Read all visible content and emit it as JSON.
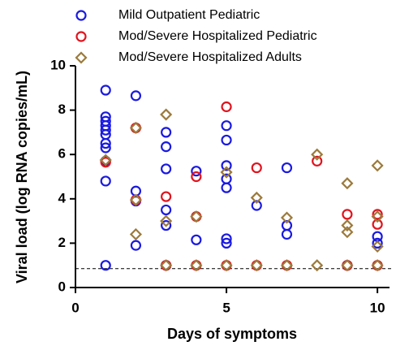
{
  "chart_data": {
    "type": "scatter",
    "x_label": "Days of symptoms",
    "y_label": "Viral load (log RNA copies/mL)",
    "xlim": [
      0,
      10.4
    ],
    "xticks": [
      0,
      5,
      10
    ],
    "ylim": [
      0,
      10
    ],
    "yticks": [
      0,
      2,
      4,
      6,
      8,
      10
    ],
    "hline": 0.85,
    "series": [
      {
        "name": "Mild Outpatient Pediatric",
        "color": "#1a1ae0",
        "marker": "circle",
        "x": [
          1,
          1,
          1,
          1,
          1,
          1,
          1,
          1,
          1,
          1,
          1,
          2,
          2,
          2,
          2,
          3,
          3,
          3,
          3,
          3,
          3,
          4,
          4,
          5,
          5,
          5,
          5,
          5,
          5,
          5,
          6,
          7,
          7,
          7,
          9,
          10,
          10
        ],
        "values": [
          8.9,
          7.7,
          7.5,
          7.3,
          7.1,
          6.9,
          6.5,
          6.3,
          5.7,
          4.8,
          1.0,
          8.65,
          4.35,
          3.9,
          1.9,
          7.0,
          6.35,
          5.35,
          3.5,
          2.8,
          1.0,
          5.25,
          2.15,
          7.3,
          6.65,
          5.5,
          4.9,
          4.5,
          2.2,
          2.0,
          3.7,
          5.4,
          2.8,
          2.4,
          1.0,
          2.3,
          2.0
        ]
      },
      {
        "name": "Mod/Severe Hospitalized Pediatric",
        "color": "#e0141e",
        "marker": "circle",
        "x": [
          1,
          2,
          2,
          3,
          3,
          4,
          4,
          4,
          5,
          5,
          6,
          6,
          7,
          8,
          9,
          9,
          10,
          10,
          10
        ],
        "values": [
          5.65,
          7.2,
          3.95,
          4.1,
          1.0,
          5.0,
          3.2,
          1.0,
          8.15,
          1.0,
          5.4,
          1.0,
          1.0,
          5.7,
          3.3,
          1.0,
          3.3,
          2.85,
          1.0
        ]
      },
      {
        "name": "Mod/Severe Hospitalized Adults",
        "color": "#9c7a3c",
        "marker": "diamond",
        "x": [
          1,
          2,
          2,
          2,
          3,
          3,
          3,
          4,
          4,
          5,
          5,
          6,
          6,
          7,
          7,
          8,
          8,
          9,
          9,
          9,
          9,
          10,
          10,
          10,
          10
        ],
        "values": [
          5.75,
          7.2,
          3.95,
          2.4,
          7.8,
          3.0,
          1.0,
          3.2,
          1.0,
          5.2,
          1.0,
          4.05,
          1.0,
          3.15,
          1.0,
          6.0,
          1.0,
          4.7,
          2.8,
          2.5,
          1.0,
          5.5,
          3.2,
          1.85,
          1.0
        ]
      }
    ]
  }
}
